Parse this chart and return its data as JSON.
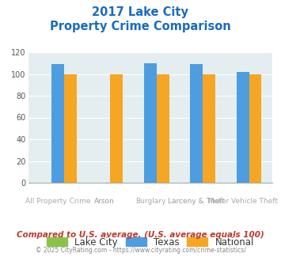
{
  "title_line1": "2017 Lake City",
  "title_line2": "Property Crime Comparison",
  "categories": [
    "All Property Crime",
    "Arson",
    "Burglary",
    "Larceny & Theft",
    "Motor Vehicle Theft"
  ],
  "x_labels_top": [
    "",
    "Arson",
    "",
    "Larceny & Theft",
    ""
  ],
  "x_labels_bottom": [
    "All Property Crime",
    "",
    "Burglary",
    "",
    "Motor Vehicle Theft"
  ],
  "lake_city": [
    0,
    0,
    0,
    0,
    0
  ],
  "texas": [
    109,
    0,
    110,
    109,
    102
  ],
  "national": [
    100,
    100,
    100,
    100,
    100
  ],
  "ylim": [
    0,
    120
  ],
  "yticks": [
    0,
    20,
    40,
    60,
    80,
    100,
    120
  ],
  "color_lake_city": "#8bc34a",
  "color_texas": "#4d9de0",
  "color_national": "#f5a623",
  "color_title": "#1a6bbf",
  "color_bg_chart": "#e4eef0",
  "color_xlabel_top": "#999999",
  "color_xlabel_bottom": "#aaaaaa",
  "legend_labels": [
    "Lake City",
    "Texas",
    "National"
  ],
  "footer_text1": "Compared to U.S. average. (U.S. average equals 100)",
  "footer_text2": "© 2025 CityRating.com - https://www.cityrating.com/crime-statistics/",
  "color_footer1": "#c0392b",
  "color_footer2": "#888888"
}
